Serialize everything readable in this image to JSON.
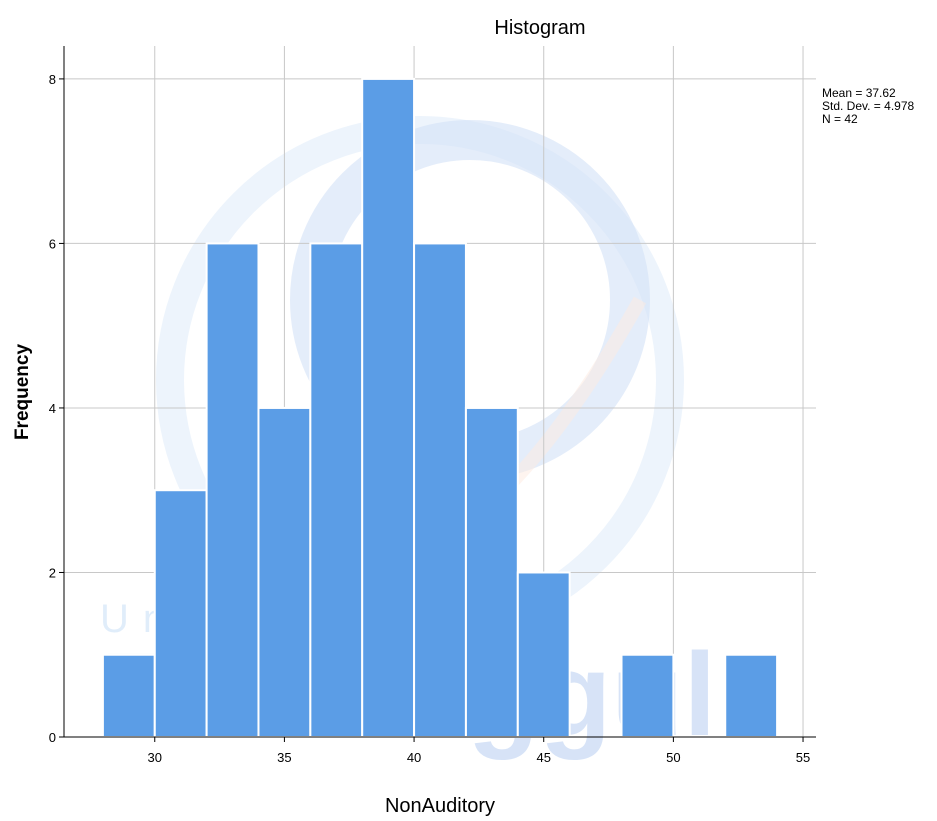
{
  "chart_data": {
    "type": "bar",
    "title": "Histogram",
    "xlabel": "NonAuditory",
    "ylabel": "Frequency",
    "xlim": [
      26.5,
      55.5
    ],
    "ylim": [
      0,
      8.4
    ],
    "x_ticks": [
      30,
      35,
      40,
      45,
      50,
      55
    ],
    "y_ticks": [
      0,
      2,
      4,
      6,
      8
    ],
    "grid": true,
    "bar_color": "#5b9de6",
    "bins": [
      {
        "x0": 28,
        "x1": 30,
        "count": 1
      },
      {
        "x0": 30,
        "x1": 32,
        "count": 3
      },
      {
        "x0": 32,
        "x1": 34,
        "count": 6
      },
      {
        "x0": 34,
        "x1": 36,
        "count": 4
      },
      {
        "x0": 36,
        "x1": 38,
        "count": 6
      },
      {
        "x0": 38,
        "x1": 40,
        "count": 8
      },
      {
        "x0": 40,
        "x1": 42,
        "count": 6
      },
      {
        "x0": 42,
        "x1": 44,
        "count": 4
      },
      {
        "x0": 44,
        "x1": 46,
        "count": 2
      },
      {
        "x0": 46,
        "x1": 48,
        "count": 0
      },
      {
        "x0": 48,
        "x1": 50,
        "count": 1
      },
      {
        "x0": 50,
        "x1": 52,
        "count": 0
      },
      {
        "x0": 52,
        "x1": 54,
        "count": 1
      }
    ],
    "stats": {
      "mean": "Mean = 37.62",
      "std_dev": "Std. Dev. = 4.978",
      "n": "N = 42"
    }
  },
  "watermark": {
    "line1": "Universitas",
    "line2": "EsaUnggul"
  }
}
